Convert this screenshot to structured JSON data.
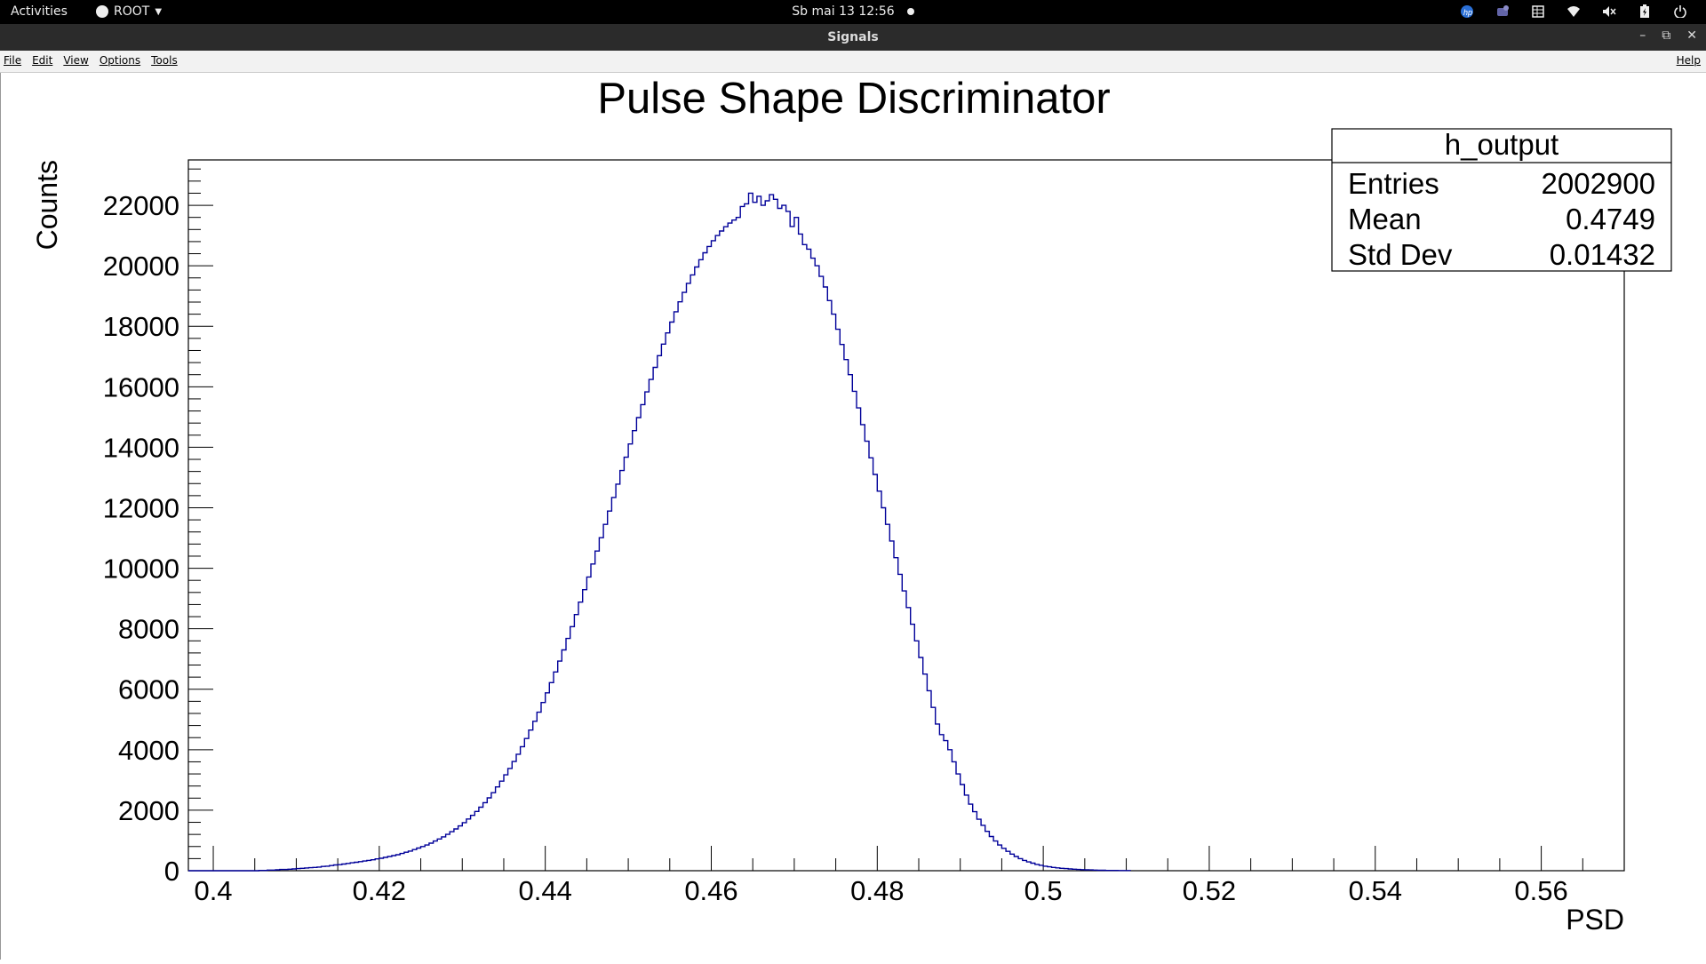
{
  "topbar": {
    "activities": "Activities",
    "app_name": "ROOT",
    "clock": "Sb mai 13  12:56",
    "tray_icons": [
      "hp-icon",
      "teams-icon",
      "grid-icon",
      "wifi-icon",
      "sound-muted-icon",
      "battery-icon",
      "power-icon"
    ]
  },
  "window": {
    "title": "Signals",
    "minimize": "–",
    "restore": "⧉",
    "close": "✕"
  },
  "menubar": {
    "items": [
      "File",
      "Edit",
      "View",
      "Options",
      "Tools"
    ],
    "help": "Help"
  },
  "chart_data": {
    "type": "histogram",
    "title": "Pulse Shape Discriminator",
    "xlabel": "PSD",
    "ylabel": "Counts",
    "xlim": [
      0.397,
      0.57
    ],
    "ylim": [
      0,
      23500
    ],
    "x_ticks": [
      "0.4",
      "0.42",
      "0.44",
      "0.46",
      "0.48",
      "0.5",
      "0.52",
      "0.54",
      "0.56"
    ],
    "y_ticks": [
      "0",
      "2000",
      "4000",
      "6000",
      "8000",
      "10000",
      "12000",
      "14000",
      "16000",
      "18000",
      "20000",
      "22000"
    ],
    "line_color": "#000099",
    "stats": {
      "name": "h_output",
      "rows": [
        {
          "label": "Entries",
          "value": "2002900"
        },
        {
          "label": "Mean",
          "value": "0.4749"
        },
        {
          "label": "Std Dev",
          "value": "0.01432"
        }
      ]
    },
    "bins": {
      "x_start": 0.4055,
      "bin_width": 0.0005,
      "counts": [
        10,
        10,
        20,
        20,
        30,
        40,
        40,
        50,
        60,
        70,
        80,
        90,
        100,
        110,
        120,
        140,
        150,
        170,
        190,
        200,
        220,
        240,
        260,
        280,
        300,
        320,
        340,
        360,
        390,
        410,
        440,
        470,
        500,
        530,
        570,
        610,
        650,
        700,
        750,
        800,
        850,
        910,
        980,
        1050,
        1120,
        1200,
        1290,
        1380,
        1480,
        1590,
        1710,
        1830,
        1960,
        2100,
        2250,
        2410,
        2580,
        2770,
        2960,
        3170,
        3380,
        3610,
        3850,
        4100,
        4370,
        4650,
        4940,
        5240,
        5560,
        5880,
        6220,
        6570,
        6930,
        7300,
        7680,
        8070,
        8470,
        8880,
        9290,
        9710,
        10140,
        10570,
        11010,
        11450,
        11890,
        12340,
        12780,
        13230,
        13670,
        14110,
        14550,
        14980,
        15410,
        15830,
        16240,
        16640,
        17030,
        17410,
        17780,
        18140,
        18480,
        18810,
        19120,
        19420,
        19700,
        19960,
        20200,
        20430,
        20640,
        20830,
        21000,
        21150,
        21290,
        21410,
        21510,
        21600,
        21960,
        22050,
        22400,
        22100,
        22300,
        22000,
        22150,
        22350,
        22200,
        21900,
        22000,
        21800,
        21300,
        21600,
        21050,
        20700,
        20550,
        20250,
        20000,
        19650,
        19300,
        18850,
        18400,
        17900,
        17400,
        16900,
        16400,
        15850,
        15300,
        14750,
        14200,
        13650,
        13100,
        12550,
        12000,
        11450,
        10900,
        10350,
        9800,
        9250,
        8700,
        8150,
        7600,
        7050,
        6500,
        5950,
        5400,
        4850,
        4500,
        4300,
        4000,
        3600,
        3200,
        2850,
        2500,
        2200,
        1950,
        1700,
        1500,
        1300,
        1130,
        980,
        850,
        740,
        640,
        550,
        470,
        400,
        340,
        290,
        250,
        210,
        180,
        150,
        130,
        110,
        95,
        80,
        70,
        60,
        50,
        40,
        35,
        30,
        25,
        20,
        15,
        15,
        10,
        10,
        10,
        5,
        5,
        5
      ]
    }
  }
}
